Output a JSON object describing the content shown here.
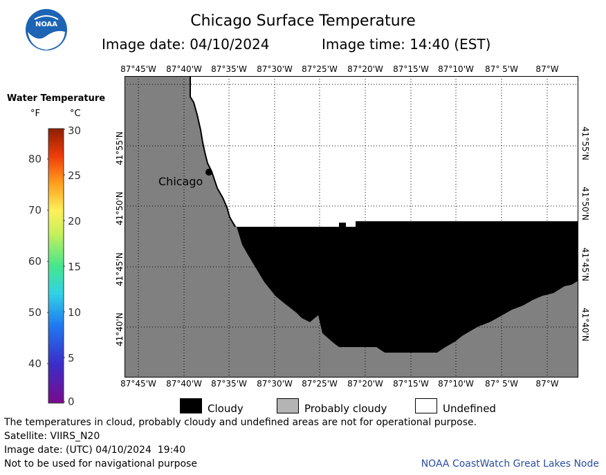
{
  "header": {
    "title": "Chicago Surface Temperature",
    "image_date": "Image date: 04/10/2024",
    "image_time": "Image time: 14:40 (EST)"
  },
  "logo": {
    "text": "NOAA"
  },
  "map": {
    "lon_labels": [
      "87°45'W",
      "87°40'W",
      "87°35'W",
      "87°30'W",
      "87°25'W",
      "87°20'W",
      "87°15'W",
      "87°10'W",
      "87° 5'W",
      "87°W"
    ],
    "lat_labels": [
      "41°55'N",
      "41°50'N",
      "41°45'N",
      "41°40'N"
    ],
    "city_label": "Chicago",
    "colors": {
      "land": "#808080",
      "cloudy": "#000000",
      "undefined": "#ffffff"
    }
  },
  "scale": {
    "title": "Water Temperature",
    "unit_f": "°F",
    "unit_c": "°C",
    "ticks_f": [
      "80",
      "70",
      "60",
      "50",
      "40"
    ],
    "ticks_c": [
      "30",
      "25",
      "20",
      "15",
      "10",
      "5",
      "0"
    ]
  },
  "legend": {
    "cloudy": "Cloudy",
    "probably_cloudy": "Probably cloudy",
    "undefined": "Undefined",
    "colors": {
      "cloudy": "#000000",
      "probably_cloudy": "#b4b4b4",
      "undefined": "#ffffff"
    }
  },
  "footer": {
    "disclaimer": "The temperatures in cloud, probably cloudy and undefined areas are not for operational purpose.",
    "satellite": "Satellite: VIIRS_N20",
    "utc_date": "Image date: (UTC) 04/10/2024  19:40",
    "navigation": "Not to be used for navigational purpose",
    "credit": "NOAA CoastWatch Great Lakes Node"
  }
}
